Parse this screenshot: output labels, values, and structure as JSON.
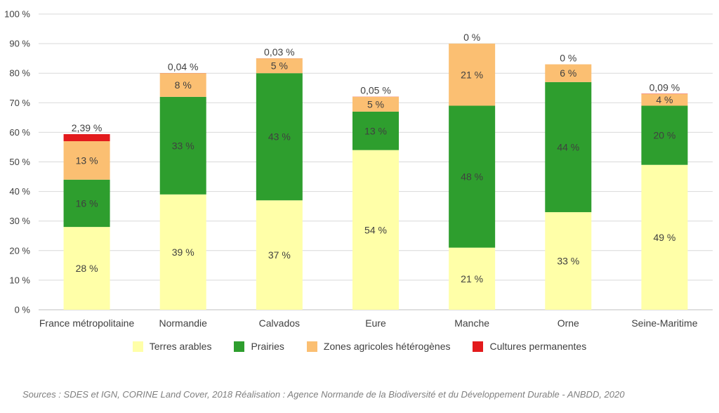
{
  "chart_data": {
    "type": "bar",
    "stacked": true,
    "categories": [
      "France métropolitaine",
      "Normandie",
      "Calvados",
      "Eure",
      "Manche",
      "Orne",
      "Seine-Maritime"
    ],
    "y_ticks": [
      "0 %",
      "10 %",
      "20 %",
      "30 %",
      "40 %",
      "50 %",
      "60 %",
      "70 %",
      "80 %",
      "90 %",
      "100 %"
    ],
    "ylim": [
      0,
      100
    ],
    "grid": true,
    "legend_position": "bottom",
    "series": [
      {
        "name": "Terres arables",
        "color": "#ffffa8",
        "values": [
          28,
          39,
          37,
          54,
          21,
          33,
          49
        ],
        "labels": [
          "28 %",
          "39 %",
          "37 %",
          "54 %",
          "21 %",
          "33 %",
          "49 %"
        ]
      },
      {
        "name": "Prairies",
        "color": "#2e9e2e",
        "values": [
          16,
          33,
          43,
          13,
          48,
          44,
          20
        ],
        "labels": [
          "16 %",
          "33 %",
          "43 %",
          "13 %",
          "48 %",
          "44 %",
          "20 %"
        ]
      },
      {
        "name": "Zones agricoles hétérogènes",
        "color": "#fbbf72",
        "values": [
          13,
          8,
          5,
          5,
          21,
          6,
          4
        ],
        "labels": [
          "13 %",
          "8 %",
          "5 %",
          "5 %",
          "21 %",
          "6 %",
          "4 %"
        ]
      },
      {
        "name": "Cultures permanentes",
        "color": "#e31a1c",
        "values": [
          2.39,
          0.04,
          0.03,
          0.05,
          0,
          0,
          0.09
        ],
        "labels": [
          "2,39 %",
          "0,04 %",
          "0,03 %",
          "0,05 %",
          "0 %",
          "0 %",
          "0,09 %"
        ]
      }
    ]
  },
  "source_text": "Sources : SDES et IGN, CORINE Land Cover, 2018 Réalisation : Agence Normande de la Biodiversité et du Développement Durable - ANBDD, 2020"
}
